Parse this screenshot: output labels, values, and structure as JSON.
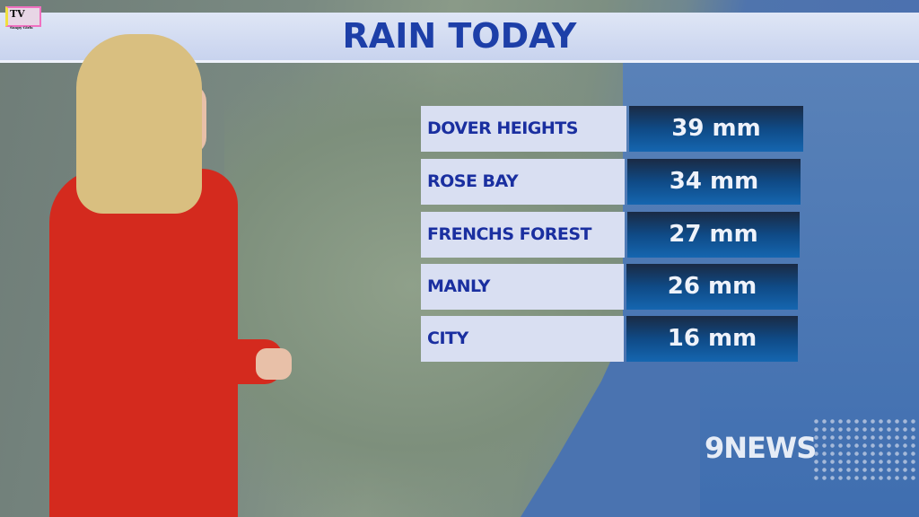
{
  "watermark": {
    "text": "TV",
    "sub": "Soapy Girls"
  },
  "graphic": {
    "title": "RAIN TODAY",
    "rows": [
      {
        "location": "DOVER HEIGHTS",
        "rainfall": "39 mm"
      },
      {
        "location": "ROSE BAY",
        "rainfall": "34 mm"
      },
      {
        "location": "FRENCHS FOREST",
        "rainfall": "27 mm"
      },
      {
        "location": "MANLY",
        "rainfall": "26 mm"
      },
      {
        "location": "CITY",
        "rainfall": "16 mm"
      }
    ]
  },
  "logo": {
    "text": "9NEWS"
  },
  "colors": {
    "title": "#1d3fa8",
    "value_box": "#0f4a86",
    "dress": "#d42a1e"
  }
}
